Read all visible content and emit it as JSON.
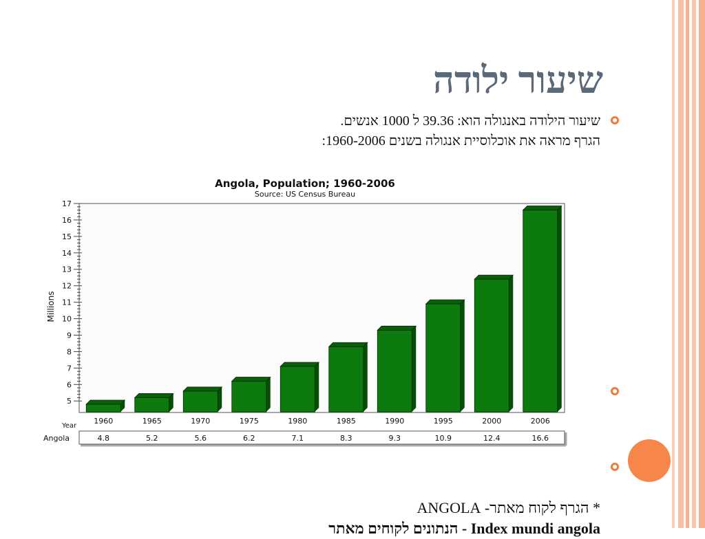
{
  "slide": {
    "title": "שיעור ילודה",
    "bullet1_line1": "שיעור הילודה באנגולה הוא: 39.36 ל 1000 אנשים.",
    "bullet1_line2": "הגרף מראה את אוכלוסיית אנגולה בשנים 1960-2006:",
    "footer_line1": "* הגרף לקוח מאתר- ANGOLA",
    "footer_line2": "Index mundi angola - הנתונים לקוחים מאתר",
    "accent_color": "#f07a3c",
    "title_color": "#5b6878"
  },
  "chart_data": {
    "type": "bar",
    "title": "Angola, Population; 1960-2006",
    "subtitle": "Source: US Census Bureau",
    "ylabel": "Millions",
    "table_header": "Year",
    "series_label": "Angola",
    "categories": [
      "1960",
      "1965",
      "1970",
      "1975",
      "1980",
      "1985",
      "1990",
      "1995",
      "2000",
      "2006"
    ],
    "values": [
      4.8,
      5.2,
      5.6,
      6.2,
      7.1,
      8.3,
      9.3,
      10.9,
      12.4,
      16.6
    ],
    "value_labels": [
      "4.8",
      "5.2",
      "5.6",
      "6.2",
      "7.1",
      "8.3",
      "9.3",
      "10.9",
      "12.4",
      "16.6"
    ],
    "ylim": [
      4.3,
      17
    ],
    "yticks": [
      "5",
      "6",
      "7",
      "8",
      "9",
      "10",
      "11",
      "12",
      "13",
      "14",
      "15",
      "16",
      "17"
    ],
    "grid": false,
    "bar_color": "#0d7a0d"
  }
}
